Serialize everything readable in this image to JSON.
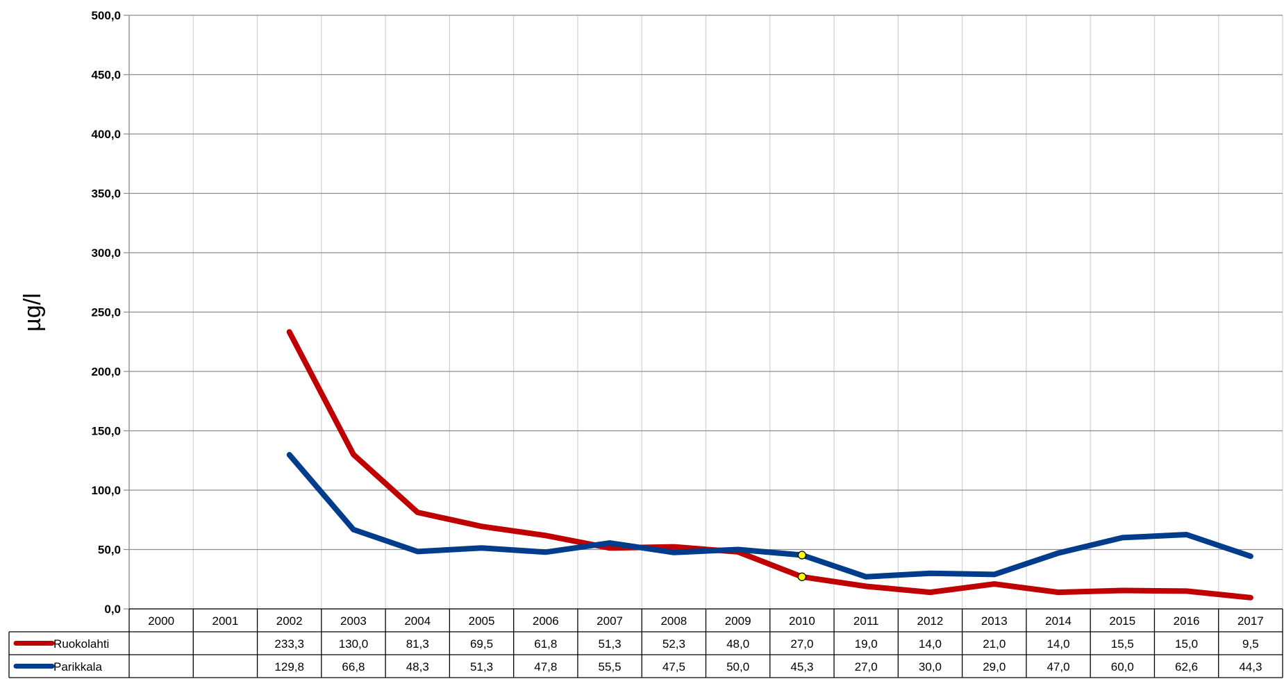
{
  "chart_data": {
    "type": "line",
    "title": "",
    "xlabel": "",
    "ylabel": "µg/l",
    "ylim": [
      0,
      500
    ],
    "ytick_step": 50,
    "ytick_labels": [
      "0,0",
      "50,0",
      "100,0",
      "150,0",
      "200,0",
      "250,0",
      "300,0",
      "350,0",
      "400,0",
      "450,0",
      "500,0"
    ],
    "grid": true,
    "legend": "data-table-below",
    "categories": [
      "2000",
      "2001",
      "2002",
      "2003",
      "2004",
      "2005",
      "2006",
      "2007",
      "2008",
      "2009",
      "2010",
      "2011",
      "2012",
      "2013",
      "2014",
      "2015",
      "2016",
      "2017"
    ],
    "series": [
      {
        "name": "Ruokolahti",
        "color": "#C00000",
        "values": [
          null,
          null,
          233.3,
          130.0,
          81.3,
          69.5,
          61.8,
          51.3,
          52.3,
          48.0,
          27.0,
          19.0,
          14.0,
          21.0,
          14.0,
          15.5,
          15.0,
          9.5
        ],
        "labels": [
          "",
          "",
          "233,3",
          "130,0",
          "81,3",
          "69,5",
          "61,8",
          "51,3",
          "52,3",
          "48,0",
          "27,0",
          "19,0",
          "14,0",
          "21,0",
          "14,0",
          "15,5",
          "15,0",
          "9,5"
        ]
      },
      {
        "name": "Parikkala",
        "color": "#003C8C",
        "values": [
          null,
          null,
          129.8,
          66.8,
          48.3,
          51.3,
          47.8,
          55.5,
          47.5,
          50.0,
          45.3,
          27.0,
          30.0,
          29.0,
          47.0,
          60.0,
          62.6,
          44.3
        ],
        "labels": [
          "",
          "",
          "129,8",
          "66,8",
          "48,3",
          "51,3",
          "47,8",
          "55,5",
          "47,5",
          "50,0",
          "45,3",
          "27,0",
          "30,0",
          "29,0",
          "47,0",
          "60,0",
          "62,6",
          "44,3"
        ]
      }
    ],
    "highlighted_points": [
      {
        "series": "Ruokolahti",
        "category": "2010",
        "color": "#FFFF00"
      },
      {
        "series": "Parikkala",
        "category": "2010",
        "color": "#FFFF00"
      }
    ]
  }
}
